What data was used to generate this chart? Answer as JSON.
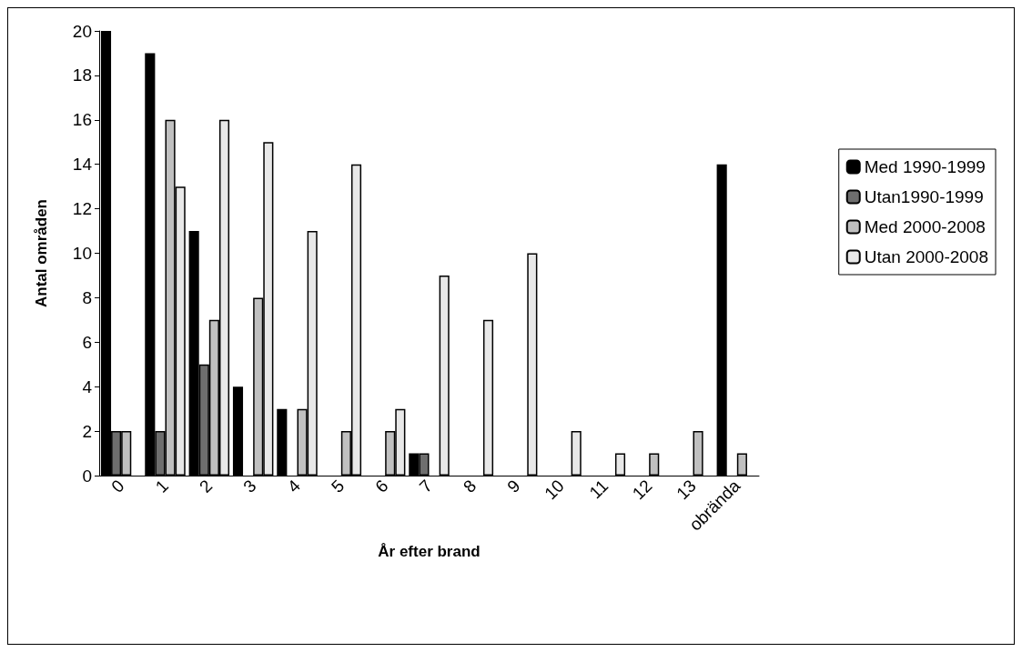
{
  "chart_data": {
    "type": "bar",
    "xlabel": "År efter brand",
    "ylabel": "Antal områden",
    "categories": [
      "0",
      "1",
      "2",
      "3",
      "4",
      "5",
      "6",
      "7",
      "8",
      "9",
      "10",
      "11",
      "12",
      "13",
      "obrända"
    ],
    "series": [
      {
        "name": "Med 1990-1999",
        "color": "#000000",
        "values": [
          20,
          19,
          11,
          4,
          3,
          null,
          null,
          1,
          null,
          null,
          null,
          null,
          null,
          null,
          14
        ]
      },
      {
        "name": "Utan1990-1999",
        "color": "#6e6e6e",
        "values": [
          2,
          2,
          5,
          null,
          null,
          null,
          null,
          1,
          null,
          null,
          null,
          null,
          null,
          null,
          null
        ]
      },
      {
        "name": "Med 2000-2008",
        "color": "#c0c0c0",
        "values": [
          2,
          16,
          7,
          8,
          3,
          2,
          2,
          null,
          null,
          null,
          null,
          null,
          1,
          2,
          1
        ]
      },
      {
        "name": "Utan 2000-2008",
        "color": "#e8e8e8",
        "values": [
          null,
          13,
          16,
          15,
          11,
          14,
          3,
          9,
          7,
          10,
          2,
          1,
          null,
          null,
          null
        ]
      }
    ],
    "ylim": [
      0,
      20
    ],
    "yticks": [
      0,
      2,
      4,
      6,
      8,
      10,
      12,
      14,
      16,
      18,
      20
    ],
    "grid": false,
    "legend": "right"
  }
}
